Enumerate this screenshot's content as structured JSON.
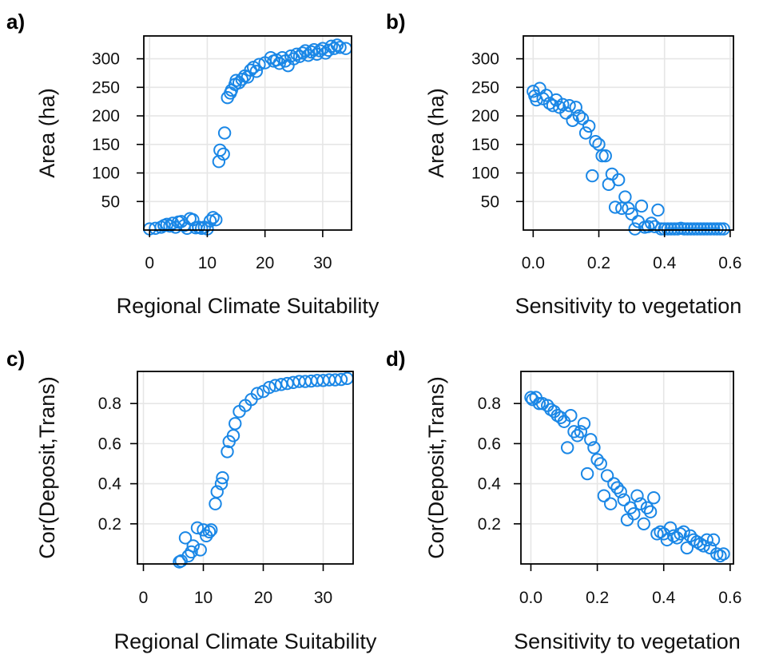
{
  "colors": {
    "point": "#1a87e6",
    "grid": "#e6e6e6",
    "axis": "#000000"
  },
  "chart_data": [
    {
      "type": "scatter",
      "panel": "a)",
      "title": "",
      "xlabel": "Regional Climate Suitability",
      "ylabel": "Area (ha)",
      "xlim": [
        -1,
        35
      ],
      "ylim": [
        0,
        340
      ],
      "xticks": [
        0,
        10,
        20,
        30
      ],
      "yticks": [
        50,
        100,
        150,
        200,
        250,
        300
      ],
      "grid": true,
      "series": [
        {
          "x": [
            0,
            1,
            2,
            2.5,
            3,
            3.5,
            4,
            4.5,
            5,
            5.5,
            6,
            6.5,
            7,
            7.5,
            8,
            8.5,
            9,
            9.5,
            10,
            10.5,
            11,
            11.5,
            12,
            12.2,
            12.8,
            13,
            13.5,
            14,
            14.2,
            14.8,
            15,
            15.5,
            16,
            16.5,
            17,
            17.5,
            18,
            18.5,
            19,
            20,
            21,
            21.5,
            22,
            22.5,
            23,
            23.5,
            24,
            24.5,
            25,
            25.5,
            26,
            26.5,
            27,
            27.5,
            28,
            28.5,
            29,
            29.5,
            30,
            30.5,
            31,
            31.5,
            32,
            32.5,
            33,
            34
          ],
          "y": [
            2,
            3,
            5,
            8,
            10,
            7,
            12,
            5,
            14,
            15,
            8,
            3,
            20,
            18,
            4,
            5,
            3,
            5,
            2,
            16,
            22,
            18,
            120,
            140,
            133,
            170,
            232,
            240,
            245,
            255,
            262,
            258,
            264,
            270,
            268,
            280,
            285,
            278,
            290,
            293,
            302,
            296,
            298,
            292,
            302,
            296,
            288,
            305,
            300,
            308,
            304,
            310,
            314,
            306,
            312,
            316,
            308,
            314,
            318,
            310,
            315,
            322,
            318,
            324,
            320,
            318
          ]
        }
      ]
    },
    {
      "type": "scatter",
      "panel": "b)",
      "title": "",
      "xlabel": "Sensitivity to vegetation",
      "ylabel": "Area (ha)",
      "xlim": [
        -0.03,
        0.61
      ],
      "ylim": [
        0,
        340
      ],
      "xticks": [
        0.0,
        0.2,
        0.4,
        0.6
      ],
      "xtick_labels": [
        "0.0",
        "0.2",
        "0.4",
        "0.6"
      ],
      "yticks": [
        50,
        100,
        150,
        200,
        250,
        300
      ],
      "grid": true,
      "series": [
        {
          "x": [
            0.0,
            0.005,
            0.01,
            0.02,
            0.03,
            0.04,
            0.05,
            0.06,
            0.07,
            0.08,
            0.09,
            0.1,
            0.11,
            0.12,
            0.13,
            0.14,
            0.15,
            0.16,
            0.17,
            0.18,
            0.19,
            0.2,
            0.21,
            0.22,
            0.23,
            0.24,
            0.25,
            0.26,
            0.27,
            0.28,
            0.29,
            0.3,
            0.31,
            0.32,
            0.33,
            0.34,
            0.35,
            0.36,
            0.37,
            0.38,
            0.39,
            0.4,
            0.41,
            0.42,
            0.43,
            0.44,
            0.45,
            0.46,
            0.47,
            0.48,
            0.49,
            0.5,
            0.51,
            0.52,
            0.53,
            0.54,
            0.55,
            0.56,
            0.57,
            0.58
          ],
          "y": [
            243,
            235,
            228,
            248,
            230,
            236,
            222,
            218,
            228,
            215,
            220,
            205,
            218,
            192,
            215,
            200,
            195,
            170,
            182,
            95,
            155,
            150,
            130,
            130,
            80,
            98,
            40,
            88,
            38,
            58,
            38,
            28,
            2,
            15,
            42,
            5,
            6,
            12,
            6,
            35,
            2,
            2,
            2,
            2,
            2,
            2,
            3,
            2,
            2,
            2,
            2,
            2,
            2,
            2,
            2,
            2,
            2,
            2,
            2,
            2
          ]
        }
      ]
    },
    {
      "type": "scatter",
      "panel": "c)",
      "title": "",
      "xlabel": "Regional Climate Suitability",
      "ylabel": "Cor(Deposit,Trans)",
      "xlim": [
        -1,
        35
      ],
      "ylim": [
        0,
        0.96
      ],
      "xticks": [
        0,
        10,
        20,
        30
      ],
      "yticks": [
        0.2,
        0.4,
        0.6,
        0.8
      ],
      "ytick_labels": [
        "0.2",
        "0.4",
        "0.6",
        "0.8"
      ],
      "grid": true,
      "series": [
        {
          "x": [
            6,
            6.3,
            7,
            7.5,
            8,
            8.3,
            9,
            9.5,
            10,
            10.5,
            11,
            11.3,
            12,
            12.3,
            13,
            13.2,
            14,
            14.3,
            15,
            15.3,
            16,
            17,
            18,
            19,
            20,
            21,
            22,
            23,
            24,
            25,
            26,
            27,
            28,
            29,
            30,
            31,
            32,
            33,
            34
          ],
          "y": [
            0.01,
            0.015,
            0.13,
            0.04,
            0.06,
            0.09,
            0.18,
            0.07,
            0.17,
            0.14,
            0.16,
            0.17,
            0.3,
            0.36,
            0.4,
            0.43,
            0.56,
            0.61,
            0.64,
            0.7,
            0.76,
            0.79,
            0.82,
            0.85,
            0.86,
            0.88,
            0.89,
            0.895,
            0.9,
            0.905,
            0.91,
            0.91,
            0.912,
            0.915,
            0.915,
            0.918,
            0.918,
            0.92,
            0.925
          ]
        }
      ]
    },
    {
      "type": "scatter",
      "panel": "d)",
      "title": "",
      "xlabel": "Sensitivity to vegetation",
      "ylabel": "Cor(Deposit,Trans)",
      "xlim": [
        -0.03,
        0.61
      ],
      "ylim": [
        0,
        0.96
      ],
      "xticks": [
        0.0,
        0.2,
        0.4,
        0.6
      ],
      "xtick_labels": [
        "0.0",
        "0.2",
        "0.4",
        "0.6"
      ],
      "yticks": [
        0.2,
        0.4,
        0.6,
        0.8
      ],
      "ytick_labels": [
        "0.2",
        "0.4",
        "0.6",
        "0.8"
      ],
      "grid": true,
      "series": [
        {
          "x": [
            0.0,
            0.005,
            0.015,
            0.025,
            0.035,
            0.05,
            0.06,
            0.07,
            0.08,
            0.09,
            0.1,
            0.11,
            0.12,
            0.13,
            0.14,
            0.15,
            0.16,
            0.17,
            0.18,
            0.19,
            0.2,
            0.21,
            0.22,
            0.23,
            0.24,
            0.25,
            0.26,
            0.27,
            0.28,
            0.29,
            0.3,
            0.31,
            0.32,
            0.33,
            0.34,
            0.35,
            0.36,
            0.37,
            0.38,
            0.39,
            0.4,
            0.41,
            0.42,
            0.43,
            0.44,
            0.45,
            0.46,
            0.47,
            0.48,
            0.49,
            0.5,
            0.51,
            0.52,
            0.53,
            0.54,
            0.55,
            0.56,
            0.57,
            0.58
          ],
          "y": [
            0.83,
            0.82,
            0.83,
            0.8,
            0.8,
            0.79,
            0.77,
            0.76,
            0.74,
            0.73,
            0.71,
            0.58,
            0.74,
            0.66,
            0.64,
            0.66,
            0.7,
            0.45,
            0.62,
            0.58,
            0.52,
            0.5,
            0.34,
            0.44,
            0.3,
            0.4,
            0.38,
            0.36,
            0.32,
            0.22,
            0.28,
            0.25,
            0.34,
            0.3,
            0.2,
            0.28,
            0.26,
            0.33,
            0.15,
            0.16,
            0.15,
            0.12,
            0.18,
            0.14,
            0.13,
            0.15,
            0.16,
            0.08,
            0.14,
            0.12,
            0.11,
            0.1,
            0.09,
            0.12,
            0.08,
            0.12,
            0.05,
            0.04,
            0.05
          ]
        }
      ]
    }
  ]
}
